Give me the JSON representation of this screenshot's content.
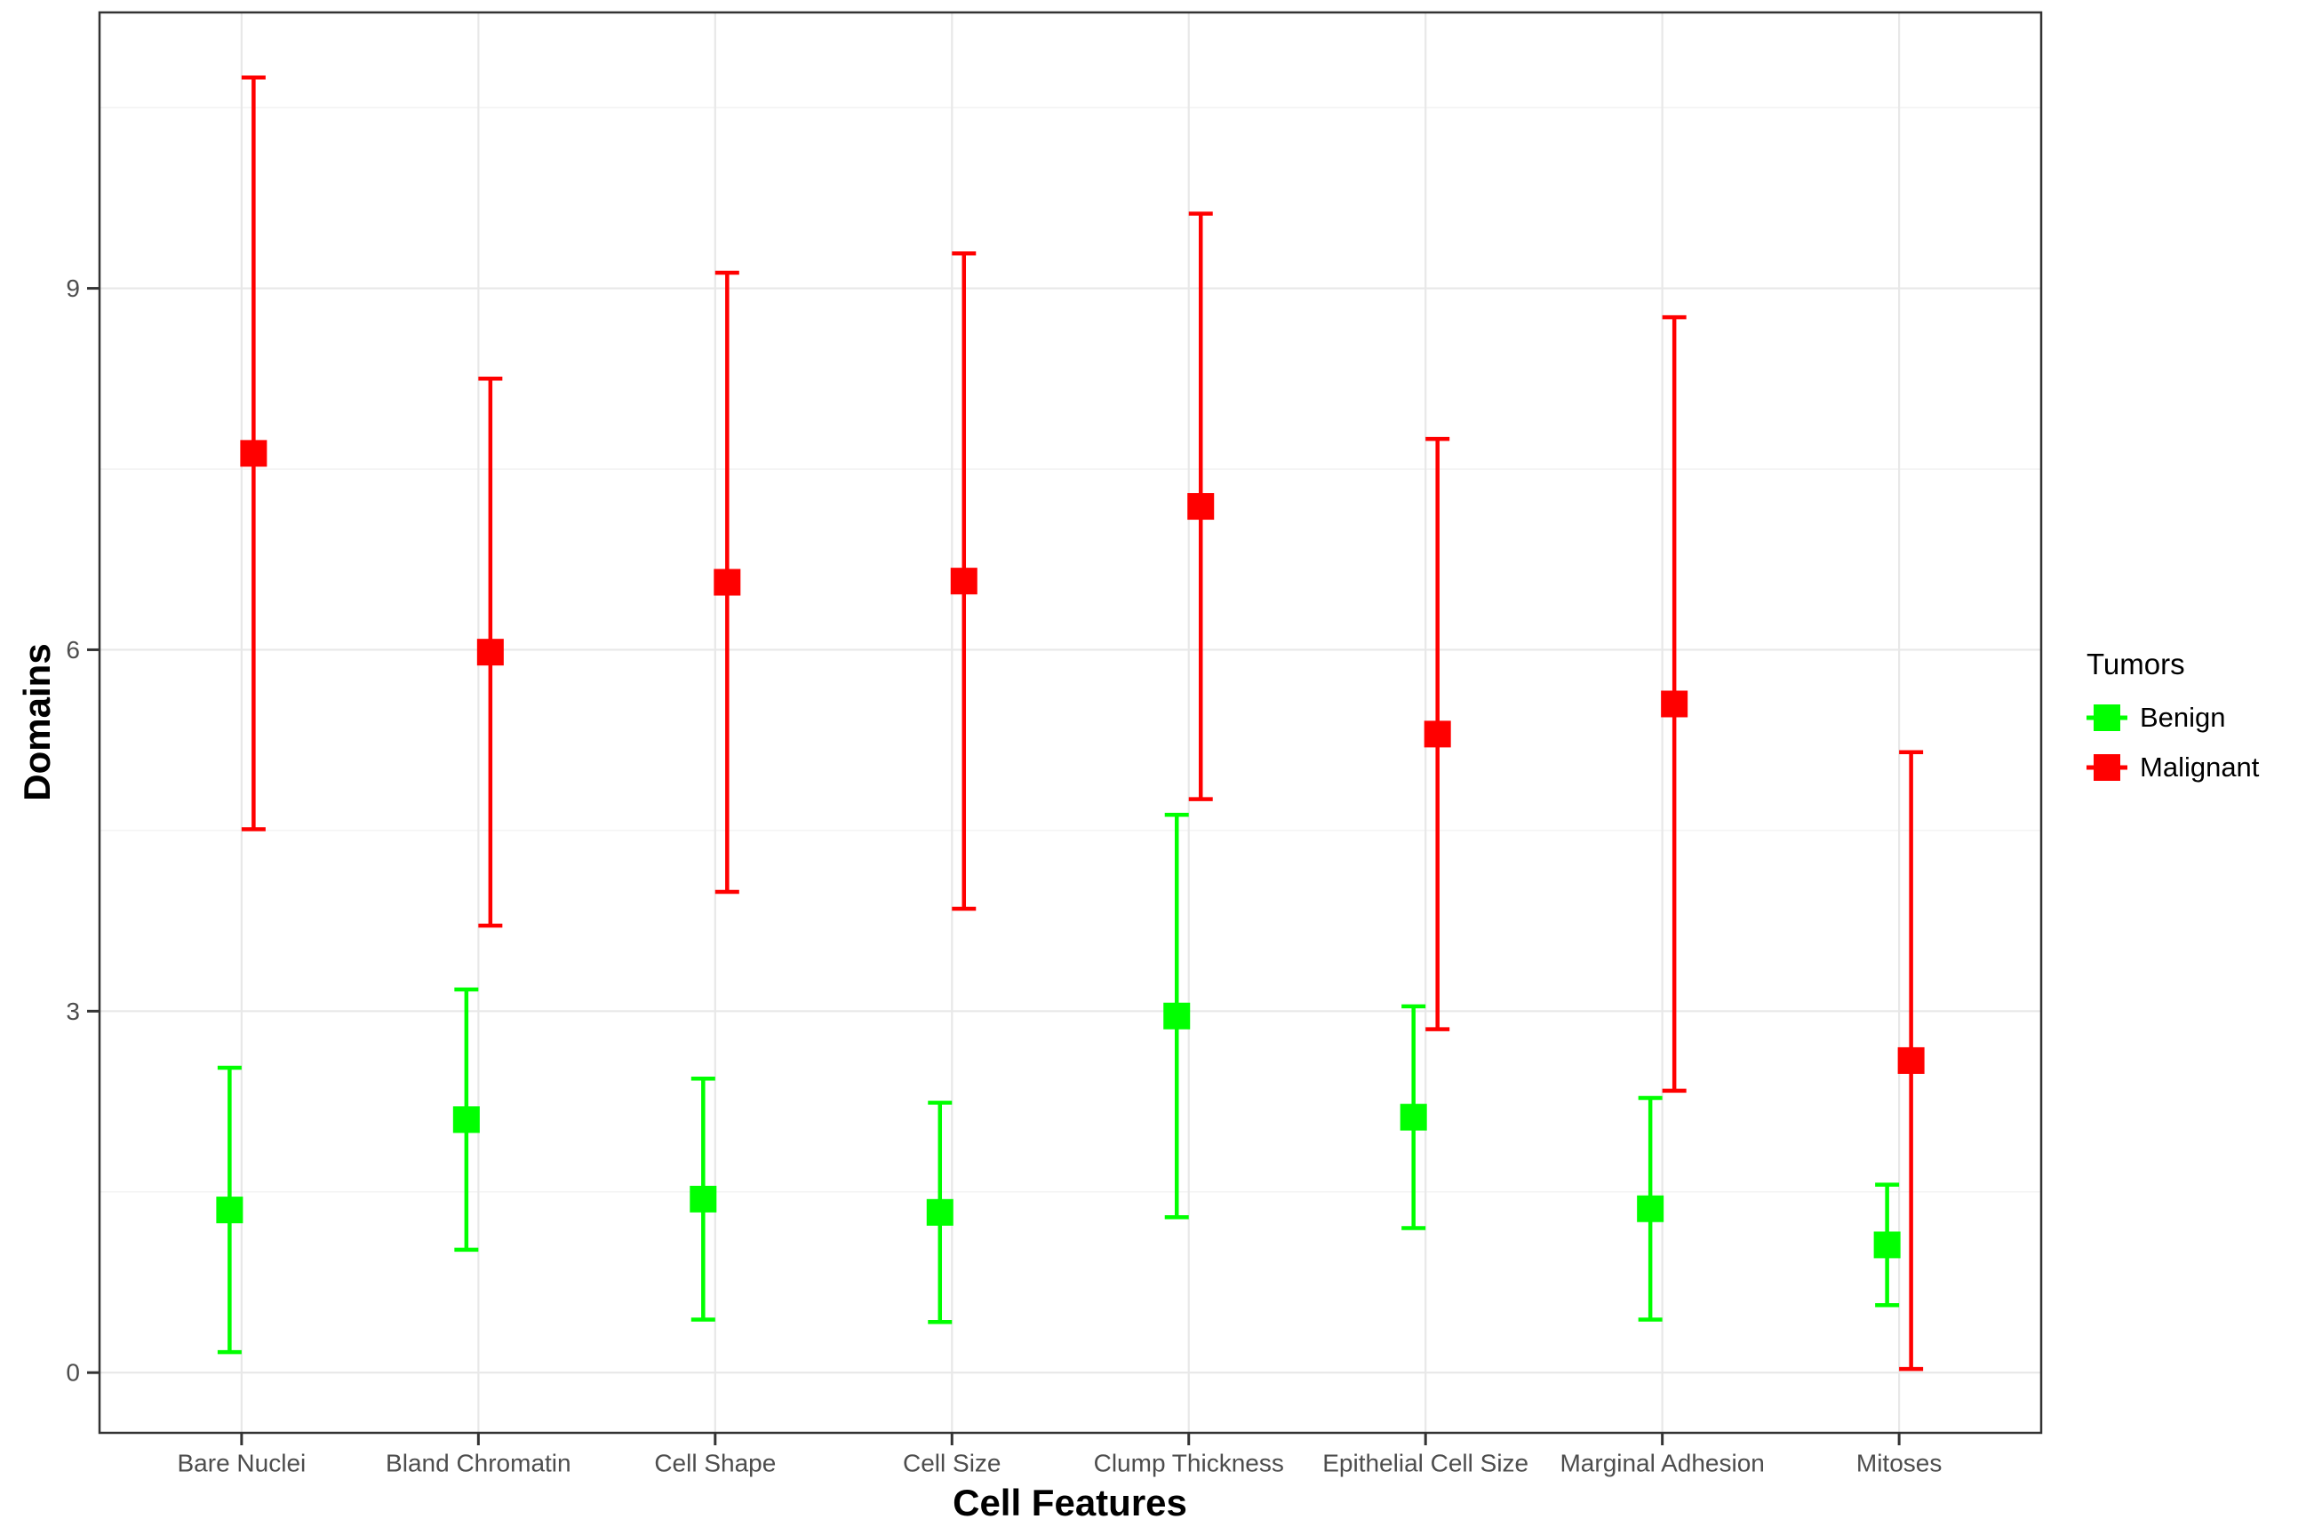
{
  "figure": {
    "background": "#ffffff"
  },
  "chart_data": {
    "type": "pointrange",
    "title": "",
    "xlabel": "Cell Features",
    "ylabel": "Domains",
    "categories": [
      "Bare Nuclei",
      "Bland Chromatin",
      "Cell Shape",
      "Cell Size",
      "Clump Thickness",
      "Epithelial Cell Size",
      "Marginal Adhesion",
      "Mitoses"
    ],
    "y_ticks": [
      "0",
      "3",
      "6",
      "9"
    ],
    "y_tick_values": [
      0,
      3,
      6,
      9
    ],
    "y_minor_values": [
      1.5,
      4.5,
      7.5,
      10.5
    ],
    "ylim": [
      -0.5,
      11.29
    ],
    "grid": {
      "major": true,
      "minor": true,
      "vertical_major": true
    },
    "legend": {
      "title": "Tumors",
      "position": "right",
      "entries": [
        {
          "label": "Benign",
          "color": "#00ff00"
        },
        {
          "label": "Malignant",
          "color": "#ff0000"
        }
      ]
    },
    "series": [
      {
        "name": "Benign",
        "color": "#00ff00",
        "points": [
          {
            "category": "Bare Nuclei",
            "mean": 1.35,
            "lower": 0.17,
            "upper": 2.53
          },
          {
            "category": "Bland Chromatin",
            "mean": 2.1,
            "lower": 1.02,
            "upper": 3.18
          },
          {
            "category": "Cell Shape",
            "mean": 1.44,
            "lower": 0.44,
            "upper": 2.44
          },
          {
            "category": "Cell Size",
            "mean": 1.33,
            "lower": 0.42,
            "upper": 2.24
          },
          {
            "category": "Clump Thickness",
            "mean": 2.96,
            "lower": 1.29,
            "upper": 4.63
          },
          {
            "category": "Epithelial Cell Size",
            "mean": 2.12,
            "lower": 1.2,
            "upper": 3.04
          },
          {
            "category": "Marginal Adhesion",
            "mean": 1.36,
            "lower": 0.44,
            "upper": 2.28
          },
          {
            "category": "Mitoses",
            "mean": 1.06,
            "lower": 0.56,
            "upper": 1.56
          }
        ]
      },
      {
        "name": "Malignant",
        "color": "#ff0000",
        "points": [
          {
            "category": "Bare Nuclei",
            "mean": 7.63,
            "lower": 4.51,
            "upper": 10.75
          },
          {
            "category": "Bland Chromatin",
            "mean": 5.98,
            "lower": 3.71,
            "upper": 8.25
          },
          {
            "category": "Cell Shape",
            "mean": 6.56,
            "lower": 3.99,
            "upper": 9.13
          },
          {
            "category": "Cell Size",
            "mean": 6.57,
            "lower": 3.85,
            "upper": 9.29
          },
          {
            "category": "Clump Thickness",
            "mean": 7.19,
            "lower": 4.76,
            "upper": 9.62
          },
          {
            "category": "Epithelial Cell Size",
            "mean": 5.3,
            "lower": 2.85,
            "upper": 7.75
          },
          {
            "category": "Marginal Adhesion",
            "mean": 5.55,
            "lower": 2.34,
            "upper": 8.76
          },
          {
            "category": "Mitoses",
            "mean": 2.59,
            "lower": 0.03,
            "upper": 5.15
          }
        ]
      }
    ]
  }
}
